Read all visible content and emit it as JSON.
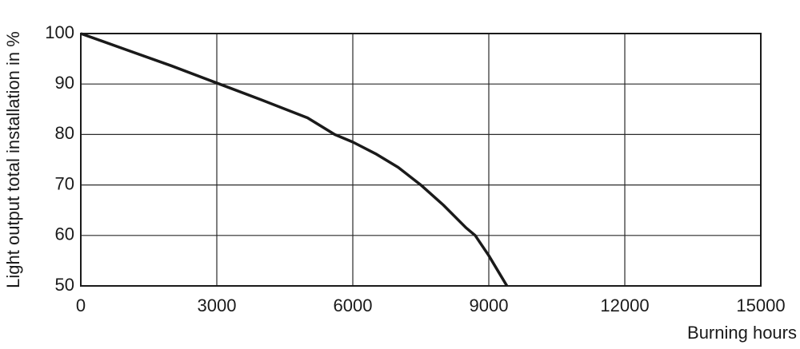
{
  "chart_data": {
    "type": "line",
    "y_label": "Light output total installation in %",
    "x_label": "Burning hours",
    "xlim": [
      0,
      15000
    ],
    "xticks": [
      0,
      3000,
      6000,
      9000,
      12000,
      15000
    ],
    "ylim": [
      50,
      100
    ],
    "yticks": [
      50,
      60,
      70,
      80,
      90,
      100
    ],
    "grid": true,
    "series": [
      {
        "color": "#1a1a1a",
        "x": [
          0,
          1000,
          2000,
          3000,
          4000,
          5000,
          5600,
          6000,
          6500,
          7000,
          7500,
          8000,
          8500,
          8700,
          9000,
          9200,
          9400
        ],
        "values": [
          100,
          96.8,
          93.6,
          90.2,
          86.8,
          83.3,
          80,
          78.5,
          76.2,
          73.5,
          70,
          66,
          61.5,
          60,
          56,
          53,
          50
        ]
      }
    ]
  }
}
